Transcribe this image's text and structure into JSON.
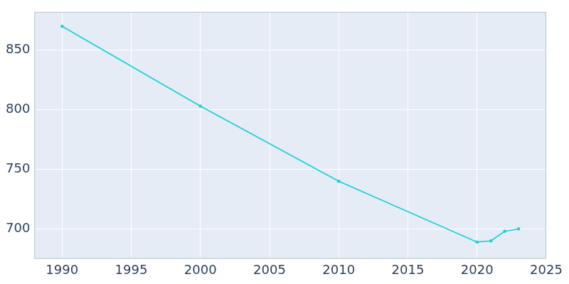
{
  "chart_data": {
    "type": "line",
    "x": [
      1990,
      2000,
      2010,
      2020,
      2021,
      2022,
      2023
    ],
    "values": [
      870,
      803,
      740,
      689,
      690,
      698,
      700
    ],
    "color": "#17cfd4",
    "marker": "circle",
    "xlim": [
      1988,
      2025
    ],
    "xticks": [
      1990,
      1995,
      2000,
      2005,
      2010,
      2015,
      2020,
      2025
    ],
    "ylim": [
      675,
      882
    ],
    "yticks": [
      700,
      750,
      800,
      850
    ],
    "grid": true
  }
}
